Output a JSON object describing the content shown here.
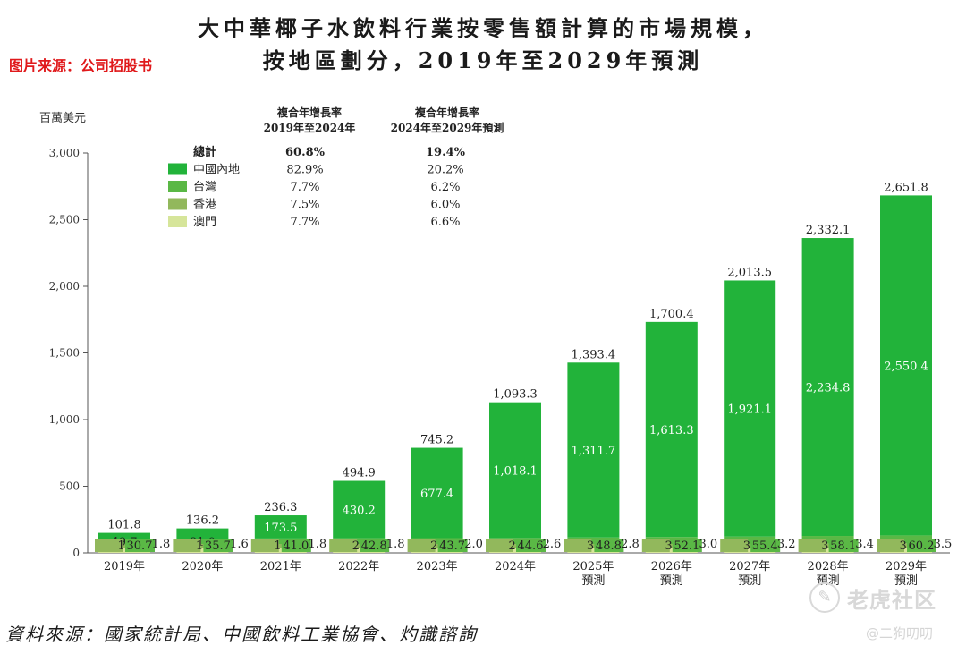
{
  "title_line1": "大中華椰子水飲料行業按零售額計算的市場規模，",
  "title_line2": "按地區劃分，2019年至2029年預測",
  "source_watermark": "图片来源：公司招股书",
  "footer_source": "資料來源：國家統計局、中國飲料工業協會、灼識諮詢",
  "watermark_brand": "老虎社区",
  "watermark_user": "@二狗叨叨",
  "colors": {
    "mainland": "#22b33a",
    "taiwan": "#5ab845",
    "hongkong": "#92b85c",
    "macau": "#d6e59a"
  },
  "legend": {
    "header_cagr1": [
      "複合年增長率",
      "2019年至2024年"
    ],
    "header_cagr2": [
      "複合年增長率",
      "2024年至2029年預測"
    ],
    "rows": [
      {
        "name": "總計",
        "cagr1": "60.8%",
        "cagr2": "19.4%",
        "swatch": null
      },
      {
        "name": "中國內地",
        "cagr1": "82.9%",
        "cagr2": "20.2%",
        "swatch": "mainland"
      },
      {
        "name": "台灣",
        "cagr1": "7.7%",
        "cagr2": "6.2%",
        "swatch": "taiwan"
      },
      {
        "name": "香港",
        "cagr1": "7.5%",
        "cagr2": "6.0%",
        "swatch": "hongkong"
      },
      {
        "name": "澳門",
        "cagr1": "7.7%",
        "cagr2": "6.6%",
        "swatch": "macau"
      }
    ]
  },
  "chart_data": {
    "type": "bar",
    "stacked": true,
    "ylabel": "百萬美元",
    "ylim": [
      0,
      3000
    ],
    "yticks": [
      0,
      500,
      1000,
      1500,
      2000,
      2500,
      3000
    ],
    "ytick_labels": [
      "0",
      "500",
      "1,000",
      "1,500",
      "2,000",
      "2,500",
      "3,000"
    ],
    "grid": false,
    "legend_position": "top-left",
    "categories": [
      [
        "2019年"
      ],
      [
        "2020年"
      ],
      [
        "2021年"
      ],
      [
        "2022年"
      ],
      [
        "2023年"
      ],
      [
        "2024年"
      ],
      [
        "2025年",
        "預測"
      ],
      [
        "2026年",
        "預測"
      ],
      [
        "2027年",
        "預測"
      ],
      [
        "2028年",
        "預測"
      ],
      [
        "2029年",
        "預測"
      ]
    ],
    "totals": [
      101.8,
      136.2,
      236.3,
      494.9,
      745.2,
      1093.3,
      1393.4,
      1700.4,
      2013.5,
      2332.1,
      2651.8
    ],
    "total_labels": [
      "101.8",
      "136.2",
      "236.3",
      "494.9",
      "745.2",
      "1,093.3",
      "1,393.4",
      "1,700.4",
      "2,013.5",
      "2,332.1",
      "2,651.8"
    ],
    "series": [
      {
        "name": "中國內地",
        "color_key": "mainland",
        "values": [
          49.7,
          81.0,
          173.5,
          430.2,
          677.4,
          1018.1,
          1311.7,
          1613.3,
          1921.1,
          2234.8,
          2550.4
        ],
        "labels": [
          "49.7",
          "81.0",
          "173.5",
          "430.2",
          "677.4",
          "1,018.1",
          "1,311.7",
          "1,613.3",
          "1,921.1",
          "2,234.8",
          "2,550.4"
        ]
      },
      {
        "name": "台灣",
        "color_key": "taiwan",
        "values": [
          30.7,
          35.7,
          41.0,
          42.8,
          43.7,
          44.6,
          48.8,
          52.1,
          55.4,
          58.1,
          60.2
        ],
        "labels": [
          "30.7",
          "35.7",
          "41.0",
          "42.8",
          "43.7",
          "44.6",
          "48.8",
          "52.1",
          "55.4",
          "58.1",
          "60.2"
        ]
      },
      {
        "name": "香港",
        "color_key": "hongkong",
        "values": [
          19.6,
          17.9,
          19.9,
          20.0,
          22.1,
          28.1,
          30.1,
          32.0,
          33.8,
          35.7,
          37.7
        ],
        "labels": [
          "19.6",
          "17.9",
          "19.9",
          "20.0",
          "22.1",
          "28.1",
          "30.1",
          "32.0",
          "33.8",
          "35.7",
          "37.7"
        ]
      },
      {
        "name": "澳門",
        "color_key": "macau",
        "values": [
          1.8,
          1.6,
          1.8,
          1.8,
          2.0,
          2.6,
          2.8,
          3.0,
          3.2,
          3.4,
          3.5
        ],
        "labels": [
          "1.8",
          "1.6",
          "1.8",
          "1.8",
          "2.0",
          "2.6",
          "2.8",
          "3.0",
          "3.2",
          "3.4",
          "3.5"
        ]
      }
    ]
  }
}
